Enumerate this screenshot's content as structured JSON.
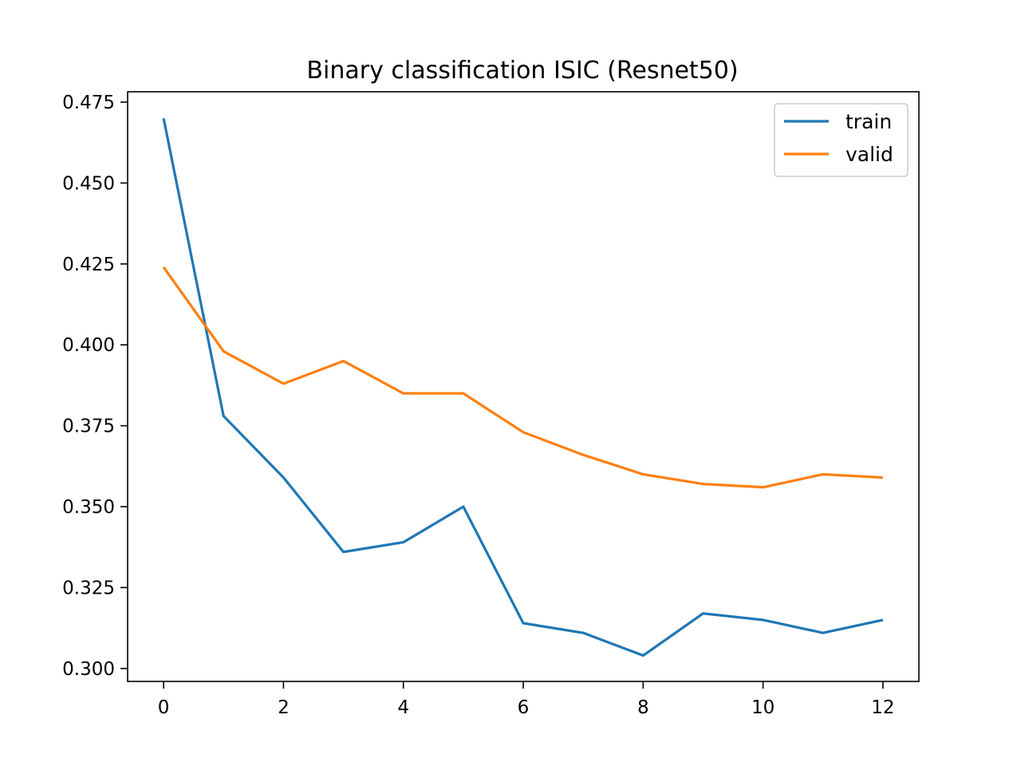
{
  "chart_data": {
    "type": "line",
    "title": "Binary classification ISIC (Resnet50)",
    "xlabel": "",
    "ylabel": "",
    "x": [
      0,
      1,
      2,
      3,
      4,
      5,
      6,
      7,
      8,
      9,
      10,
      11,
      12
    ],
    "xlim": [
      -0.6,
      12.6
    ],
    "ylim": [
      0.296,
      0.4782
    ],
    "xticks": [
      0,
      2,
      4,
      6,
      8,
      10,
      12
    ],
    "yticks": [
      0.3,
      0.325,
      0.35,
      0.375,
      0.4,
      0.425,
      0.45,
      0.475
    ],
    "xtick_labels": [
      "0",
      "2",
      "4",
      "6",
      "8",
      "10",
      "12"
    ],
    "ytick_labels": [
      "0.300",
      "0.325",
      "0.350",
      "0.375",
      "0.400",
      "0.425",
      "0.450",
      "0.475"
    ],
    "grid": false,
    "legend_position": "top-right",
    "series": [
      {
        "name": "train",
        "color": "#1f77b4",
        "values": [
          0.47,
          0.378,
          0.359,
          0.336,
          0.339,
          0.35,
          0.314,
          0.311,
          0.304,
          0.317,
          0.315,
          0.311,
          0.315
        ]
      },
      {
        "name": "valid",
        "color": "#ff7f0e",
        "values": [
          0.424,
          0.398,
          0.388,
          0.395,
          0.385,
          0.385,
          0.373,
          0.366,
          0.36,
          0.357,
          0.356,
          0.36,
          0.359
        ]
      }
    ]
  }
}
